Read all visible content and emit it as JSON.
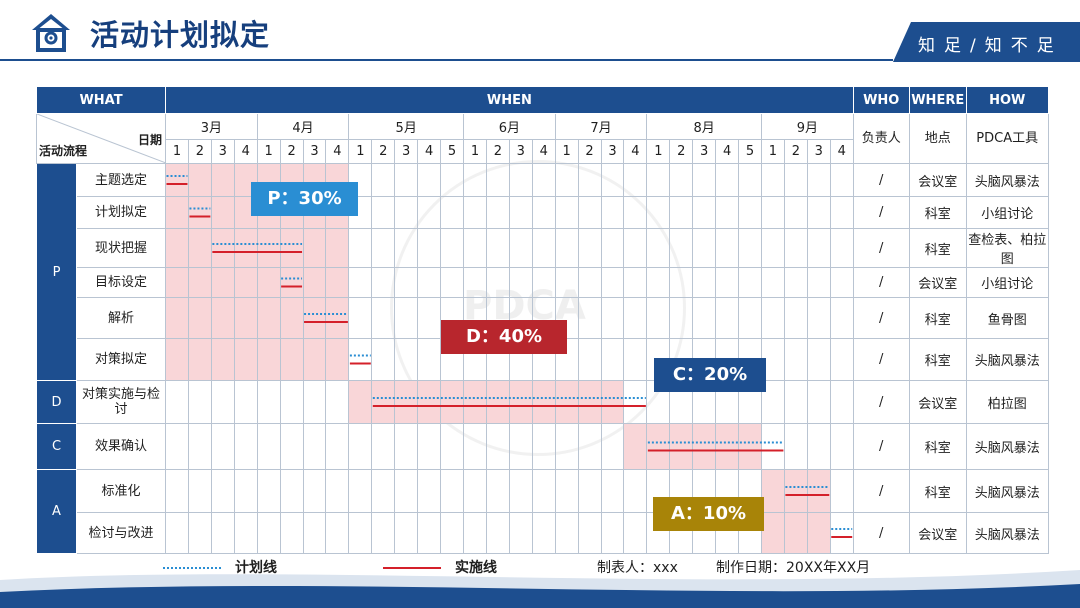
{
  "header": {
    "title": "活动计划拟定",
    "slogan": "知足/知不足",
    "logo_icon": "house-icon",
    "brand_color": "#1d4e8f"
  },
  "watermark": {
    "text": "PDCA"
  },
  "table": {
    "headers": {
      "what": "WHAT",
      "when": "WHEN",
      "who": "WHO",
      "where": "WHERE",
      "how": "HOW"
    },
    "corner": {
      "date": "日期",
      "flow": "活动流程"
    },
    "sub_headers": {
      "person": "负责人",
      "place": "地点",
      "tool": "PDCA工具"
    },
    "months": [
      {
        "label": "3月",
        "weeks": [
          "1",
          "2",
          "3",
          "4"
        ]
      },
      {
        "label": "4月",
        "weeks": [
          "1",
          "2",
          "3",
          "4"
        ]
      },
      {
        "label": "5月",
        "weeks": [
          "1",
          "2",
          "3",
          "4",
          "5"
        ]
      },
      {
        "label": "6月",
        "weeks": [
          "1",
          "2",
          "3",
          "4"
        ]
      },
      {
        "label": "7月",
        "weeks": [
          "1",
          "2",
          "3",
          "4"
        ]
      },
      {
        "label": "8月",
        "weeks": [
          "1",
          "2",
          "3",
          "4",
          "5"
        ]
      },
      {
        "label": "9月",
        "weeks": [
          "1",
          "2",
          "3",
          "4"
        ]
      }
    ],
    "stages": [
      {
        "label": "P",
        "rows": [
          {
            "step": "主题选定",
            "person": "/",
            "place": "会议室",
            "tool": "头脑风暴法"
          },
          {
            "step": "计划拟定",
            "person": "/",
            "place": "科室",
            "tool": "小组讨论"
          },
          {
            "step": "现状把握",
            "person": "/",
            "place": "科室",
            "tool": "查检表、柏拉图"
          },
          {
            "step": "目标设定",
            "person": "/",
            "place": "会议室",
            "tool": "小组讨论"
          },
          {
            "step": "解析",
            "person": "/",
            "place": "科室",
            "tool": "鱼骨图"
          },
          {
            "step": "对策拟定",
            "person": "/",
            "place": "科室",
            "tool": "头脑风暴法"
          }
        ]
      },
      {
        "label": "D",
        "rows": [
          {
            "step": "对策实施与检讨",
            "person": "/",
            "place": "会议室",
            "tool": "柏拉图"
          }
        ]
      },
      {
        "label": "C",
        "rows": [
          {
            "step": "效果确认",
            "person": "/",
            "place": "科室",
            "tool": "头脑风暴法"
          }
        ]
      },
      {
        "label": "A",
        "rows": [
          {
            "step": "标准化",
            "person": "/",
            "place": "科室",
            "tool": "头脑风暴法"
          },
          {
            "step": "检讨与改进",
            "person": "/",
            "place": "会议室",
            "tool": "头脑风暴法"
          }
        ]
      }
    ]
  },
  "schedule": {
    "plan_color": "#2a8ed3",
    "actual_color": "#d4202a",
    "shade_color": "#f9d6d8",
    "shade_blocks": [
      {
        "rows": [
          0,
          5
        ],
        "weeks": [
          0,
          7
        ]
      },
      {
        "rows": [
          6,
          6
        ],
        "weeks": [
          8,
          19
        ]
      },
      {
        "rows": [
          7,
          7
        ],
        "weeks": [
          20,
          25
        ]
      },
      {
        "rows": [
          8,
          9
        ],
        "weeks": [
          26,
          28
        ]
      }
    ],
    "tasks": [
      {
        "row": 0,
        "plan": [
          0,
          0
        ],
        "actual": [
          0,
          0
        ]
      },
      {
        "row": 1,
        "plan": [
          1,
          1
        ],
        "actual": [
          1,
          1
        ]
      },
      {
        "row": 2,
        "plan": [
          2,
          5
        ],
        "actual": [
          2,
          5
        ]
      },
      {
        "row": 3,
        "plan": [
          5,
          5
        ],
        "actual": [
          5,
          5
        ]
      },
      {
        "row": 4,
        "plan": [
          6,
          7
        ],
        "actual": [
          6,
          7
        ]
      },
      {
        "row": 5,
        "plan": [
          8,
          8
        ],
        "actual": [
          8,
          8
        ]
      },
      {
        "row": 6,
        "plan": [
          9,
          20
        ],
        "actual": [
          9,
          20
        ]
      },
      {
        "row": 7,
        "plan": [
          21,
          26
        ],
        "actual": [
          21,
          26
        ]
      },
      {
        "row": 8,
        "plan": [
          27,
          28
        ],
        "actual": [
          27,
          28
        ]
      },
      {
        "row": 9,
        "plan": [
          29,
          29
        ],
        "actual": [
          29,
          29
        ]
      }
    ]
  },
  "phase_badges": [
    {
      "key": "p",
      "label": "P：30%",
      "percent": 30,
      "color": "#2a8ed3"
    },
    {
      "key": "d",
      "label": "D：40%",
      "percent": 40,
      "color": "#b8262d"
    },
    {
      "key": "c",
      "label": "C：20%",
      "percent": 20,
      "color": "#1d4e8f"
    },
    {
      "key": "a",
      "label": "A：10%",
      "percent": 10,
      "color": "#a88408"
    }
  ],
  "legend": {
    "plan_label": "计划线",
    "actual_label": "实施线",
    "maker": "制表人：xxx",
    "date": "制作日期：20XX年XX月"
  }
}
